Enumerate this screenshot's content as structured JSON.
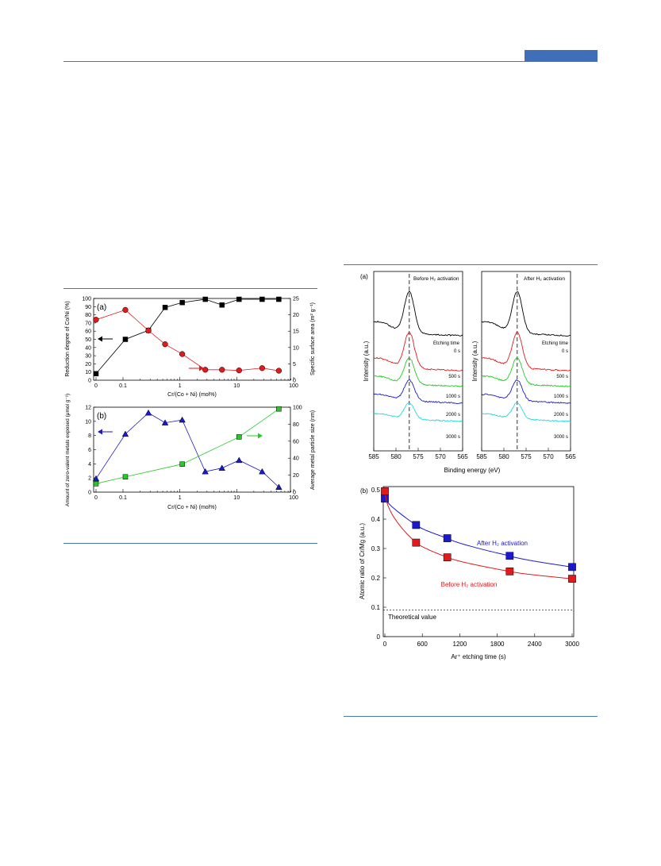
{
  "colors": {
    "rule": "#4a78b5",
    "header_box": "#3e6fb8",
    "black": "#000000",
    "red": "#e31a1c",
    "blue": "#1a1acc",
    "green": "#22cc22",
    "cyan": "#22d8e0"
  },
  "chart_data": [
    {
      "id": "fig-left-a",
      "type": "line",
      "panel_label": "(a)",
      "xlabel": "Cr/(Co + Ni) (mol%)",
      "ylabel_left": "Reduction degree of Co/Ni (%)",
      "ylabel_right": "Specific surface area (m² g⁻¹)",
      "x_scale": "log-with-zero",
      "x_ticks": [
        "0",
        "0.1",
        "1",
        "10",
        "100"
      ],
      "y_left_ticks": [
        "0",
        "10",
        "20",
        "30",
        "40",
        "50",
        "60",
        "70",
        "80",
        "90",
        "100"
      ],
      "y_right_ticks": [
        "0",
        "5",
        "10",
        "15",
        "20",
        "25"
      ],
      "ylim_left": [
        0,
        100
      ],
      "ylim_right": [
        0,
        25
      ],
      "series": [
        {
          "axis": "left",
          "color": "black",
          "marker": "square",
          "x": [
            0,
            0.11,
            0.28,
            0.55,
            1.1,
            2.8,
            5.5,
            11,
            28,
            55
          ],
          "values": [
            8,
            50,
            61,
            89,
            95,
            99,
            92,
            99,
            99,
            99
          ]
        },
        {
          "axis": "right",
          "color": "red",
          "marker": "circle",
          "x": [
            0,
            0.11,
            0.28,
            0.55,
            1.1,
            2.8,
            5.5,
            11,
            28,
            55
          ],
          "values": [
            18.5,
            21.5,
            15.2,
            11,
            8,
            3.2,
            3.2,
            3,
            3.7,
            2.9
          ]
        }
      ]
    },
    {
      "id": "fig-left-b",
      "type": "line",
      "panel_label": "(b)",
      "xlabel": "Cr/(Co + Ni) (mol%)",
      "ylabel_left": "Amount of zero-valent metals exposed (μmol g⁻¹)",
      "ylabel_right": "Average metal particle size (nm)",
      "x_scale": "log-with-zero",
      "x_ticks": [
        "0",
        "0.1",
        "1",
        "10",
        "100"
      ],
      "y_left_ticks": [
        "0",
        "2",
        "4",
        "6",
        "8",
        "10",
        "12"
      ],
      "y_right_ticks": [
        "0",
        "20",
        "40",
        "60",
        "80",
        "100"
      ],
      "ylim_left": [
        0,
        12
      ],
      "ylim_right": [
        0,
        100
      ],
      "series": [
        {
          "axis": "left",
          "color": "blue",
          "marker": "triangle",
          "x": [
            0,
            0.11,
            0.28,
            0.55,
            1.1,
            2.8,
            5.5,
            11,
            28,
            55
          ],
          "values": [
            1.9,
            8.2,
            11.2,
            9.8,
            10.2,
            2.9,
            3.4,
            4.5,
            2.9,
            0.7
          ]
        },
        {
          "axis": "right",
          "color": "green",
          "marker": "square",
          "x": [
            0,
            0.11,
            1.1,
            11,
            55
          ],
          "values": [
            10,
            18,
            33,
            65,
            98
          ]
        }
      ]
    },
    {
      "id": "fig-right-a",
      "type": "line",
      "panel_label": "(a)",
      "xlabel": "Binding energy (eV)",
      "ylabel": "Intensity (a.u.)",
      "x_ticks": [
        "585",
        "580",
        "575",
        "570",
        "565"
      ],
      "xlim": [
        585,
        565
      ],
      "peak_eV": 577,
      "panels": [
        {
          "title": "Before H₂ activation"
        },
        {
          "title": "After H₂ activation"
        }
      ],
      "legend_title": "Etching time",
      "series": [
        {
          "name": "0 s",
          "color": "black"
        },
        {
          "name": "500 s",
          "color": "red"
        },
        {
          "name": "1000 s",
          "color": "green"
        },
        {
          "name": "2000 s",
          "color": "blue"
        },
        {
          "name": "3000 s",
          "color": "cyan"
        }
      ]
    },
    {
      "id": "fig-right-b",
      "type": "scatter",
      "panel_label": "(b)",
      "xlabel": "Ar⁺ etching time (s)",
      "ylabel": "Atomic ratio of Cr/Mg (a.u.)",
      "x_ticks": [
        "0",
        "600",
        "1200",
        "1800",
        "2400",
        "3000"
      ],
      "y_ticks": [
        "0",
        "0.1",
        "0.2",
        "0.3",
        "0.4",
        "0.5"
      ],
      "xlim": [
        0,
        3000
      ],
      "ylim": [
        0,
        0.5
      ],
      "series": [
        {
          "name": "After H₂ activation",
          "color": "blue",
          "x": [
            0,
            500,
            1000,
            2000,
            3000
          ],
          "values": [
            0.47,
            0.38,
            0.335,
            0.275,
            0.237
          ]
        },
        {
          "name": "Before H₂ activation",
          "color": "red",
          "x": [
            0,
            500,
            1000,
            2000,
            3000
          ],
          "values": [
            0.495,
            0.32,
            0.27,
            0.222,
            0.197
          ]
        }
      ],
      "reference_line": {
        "label": "Theoretical value",
        "value": 0.09
      }
    }
  ]
}
